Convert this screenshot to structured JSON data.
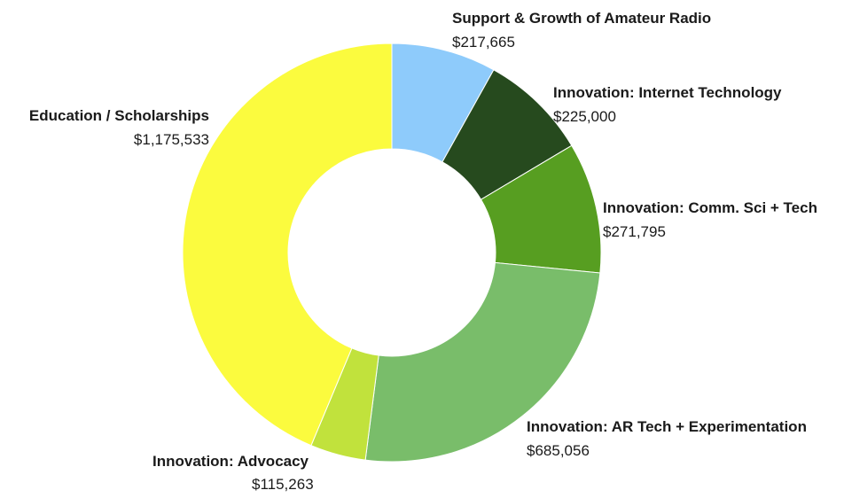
{
  "chart_data": {
    "type": "pie",
    "donut": true,
    "title": "",
    "start_angle_deg": 0,
    "direction": "clockwise",
    "slices": [
      {
        "label": "Support & Growth of Amateur Radio",
        "value": 217665,
        "value_label": "$217,665",
        "color": "#8ecbfb"
      },
      {
        "label": "Innovation: Internet Technology",
        "value": 225000,
        "value_label": "$225,000",
        "color": "#264a1e"
      },
      {
        "label": "Innovation: Comm. Sci + Tech",
        "value": 271795,
        "value_label": "$271,795",
        "color": "#579e21"
      },
      {
        "label": "Innovation: AR Tech + Experimentation",
        "value": 685056,
        "value_label": "$685,056",
        "color": "#79bd6a"
      },
      {
        "label": "Innovation: Advocacy",
        "value": 115263,
        "value_label": "$115,263",
        "color": "#c1e23c"
      },
      {
        "label": "Education / Scholarships",
        "value": 1175533,
        "value_label": "$1,175,533",
        "color": "#fbfb3e"
      }
    ]
  }
}
